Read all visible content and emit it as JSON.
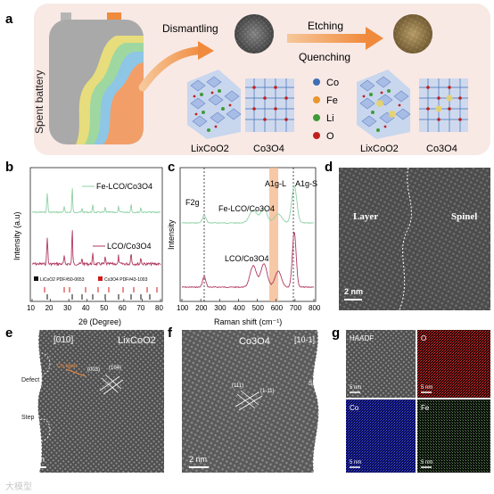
{
  "panel_a": {
    "letter": "a",
    "battery_label": "Spent battery",
    "step1": "Dismantling",
    "step2": "Etching",
    "step3": "Quenching",
    "left_struct_1": "LixCoO2",
    "left_struct_2": "Co3O4",
    "right_struct_1": "LixCoO2",
    "right_struct_2": "Co3O4",
    "legend": [
      {
        "label": "Co",
        "color": "#3d6fb6"
      },
      {
        "label": "Fe",
        "color": "#e8962f"
      },
      {
        "label": "Li",
        "color": "#3e9b3a"
      },
      {
        "label": "O",
        "color": "#c0201d"
      }
    ]
  },
  "panel_b": {
    "letter": "b",
    "xlabel": "2θ (Degree)",
    "ylabel": "Intensity (a.u)",
    "xticks": [
      "10",
      "20",
      "30",
      "40",
      "50",
      "60",
      "70",
      "80"
    ],
    "series": [
      {
        "name": "Fe-LCO/Co3O4",
        "color": "#8fd1a5"
      },
      {
        "name": "LCO/Co3O4",
        "color": "#b03a5e"
      }
    ],
    "legend_ref": [
      {
        "label": "LiCoO2 PDF#50-0653",
        "color": "#111111"
      },
      {
        "label": "Co3O4 PDF#43-1003",
        "color": "#d11b1b"
      }
    ]
  },
  "panel_c": {
    "letter": "c",
    "xlabel": "Raman shift (cm⁻¹)",
    "ylabel": "Intensity",
    "xticks": [
      "100",
      "200",
      "300",
      "400",
      "500",
      "600",
      "700",
      "800"
    ],
    "labels": [
      "F2g",
      "A1g-L",
      "A1g-S"
    ],
    "series": [
      {
        "name": "Fe-LCO/Co3O4",
        "color": "#8fd1a5"
      },
      {
        "name": "LCO/Co3O4",
        "color": "#b03a5e"
      }
    ]
  },
  "panel_d": {
    "letter": "d",
    "left": "Layer",
    "right": "Spinel",
    "scale": "2 nm"
  },
  "panel_e": {
    "letter": "e",
    "zone": "[010]",
    "phase": "LixCoO2",
    "layer": "Co layer",
    "planes": [
      "(003)",
      "(104)"
    ],
    "defect": "Defect",
    "step": "Step",
    "scale": "2 nm"
  },
  "panel_f": {
    "letter": "f",
    "phase": "Co3O4",
    "zone": "[10-1]",
    "planes": [
      "(111)",
      "(1-11)"
    ],
    "step": "Step",
    "scale": "2 nm"
  },
  "panel_g": {
    "letter": "g",
    "maps": [
      {
        "label": "HAADF",
        "scale": "5 nm",
        "color": "#ffffff"
      },
      {
        "label": "O",
        "scale": "5 nm",
        "color": "#c0201d"
      },
      {
        "label": "Co",
        "scale": "5 nm",
        "color": "#2431c8"
      },
      {
        "label": "Fe",
        "scale": "5 nm",
        "color": "#7fa86b"
      }
    ]
  },
  "watermark": "大模型"
}
